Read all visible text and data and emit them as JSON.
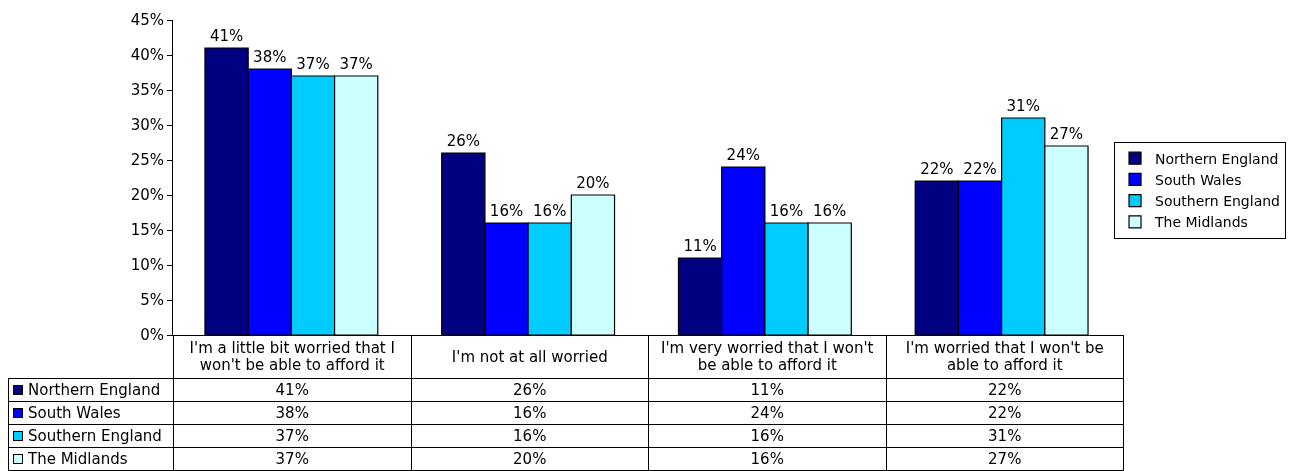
{
  "chart_data": {
    "type": "bar",
    "categories": [
      "I'm a little bit worried that I won't be able to afford it",
      "I'm not at all worried",
      "I'm very worried that I won't be able to afford it",
      "I'm worried that I won't be able to afford it"
    ],
    "series": [
      {
        "name": "Northern England",
        "color": "#000080",
        "values": [
          41,
          26,
          11,
          22
        ],
        "value_labels": [
          "41%",
          "26%",
          "11%",
          "22%"
        ]
      },
      {
        "name": "South Wales",
        "color": "#0000ff",
        "values": [
          38,
          16,
          24,
          22
        ],
        "value_labels": [
          "38%",
          "16%",
          "24%",
          "22%"
        ]
      },
      {
        "name": "Southern England",
        "color": "#00ccff",
        "values": [
          37,
          16,
          16,
          31
        ],
        "value_labels": [
          "37%",
          "16%",
          "16%",
          "31%"
        ]
      },
      {
        "name": "The Midlands",
        "color": "#ccffff",
        "values": [
          37,
          20,
          16,
          27
        ],
        "value_labels": [
          "37%",
          "20%",
          "16%",
          "27%"
        ]
      }
    ],
    "ylim": [
      0,
      45
    ],
    "yticks": [
      {
        "value": 0,
        "label": "0%"
      },
      {
        "value": 5,
        "label": "5%"
      },
      {
        "value": 10,
        "label": "10%"
      },
      {
        "value": 15,
        "label": "15%"
      },
      {
        "value": 20,
        "label": "20%"
      },
      {
        "value": 25,
        "label": "25%"
      },
      {
        "value": 30,
        "label": "30%"
      },
      {
        "value": 35,
        "label": "35%"
      },
      {
        "value": 40,
        "label": "40%"
      },
      {
        "value": 45,
        "label": "45%"
      }
    ],
    "legend": "right"
  }
}
